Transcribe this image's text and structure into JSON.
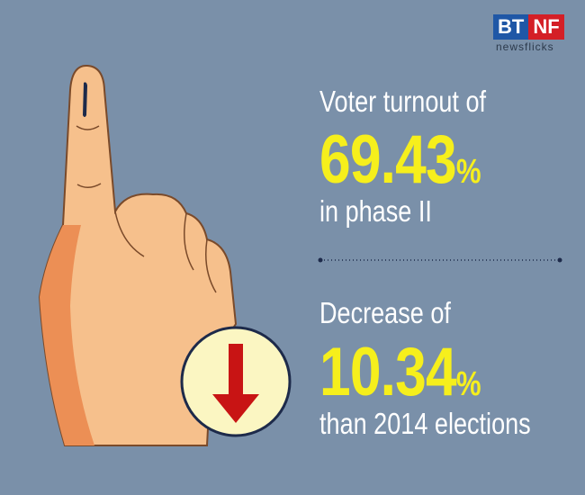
{
  "logo": {
    "left": "BT",
    "right": "NF",
    "tagline": "newsflicks"
  },
  "stats": [
    {
      "lead": "Voter turnout of",
      "figure": "69.43",
      "unit": "%",
      "tail": "in phase II"
    },
    {
      "lead": "Decrease of",
      "figure": "10.34",
      "unit": "%",
      "tail": "than 2014 elections"
    }
  ]
}
